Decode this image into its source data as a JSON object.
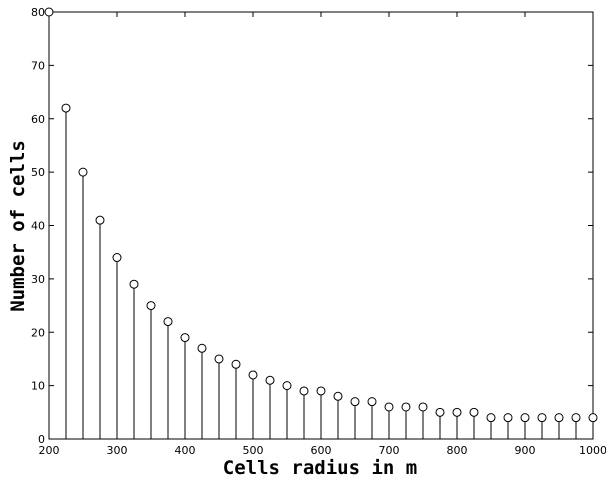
{
  "chart_data": {
    "type": "stem",
    "title": "",
    "xlabel": "Cells radius in m",
    "ylabel": "Number of cells",
    "xlim": [
      200,
      1000
    ],
    "ylim": [
      0,
      80
    ],
    "xticks": [
      200,
      300,
      400,
      500,
      600,
      700,
      800,
      900,
      1000
    ],
    "yticks": [
      0,
      10,
      20,
      30,
      40,
      50,
      60,
      70,
      80
    ],
    "grid": false,
    "legend": "none",
    "marker": "open-circle",
    "line_color": "#000000",
    "x": [
      200,
      225,
      250,
      275,
      300,
      325,
      350,
      375,
      400,
      425,
      450,
      475,
      500,
      525,
      550,
      575,
      600,
      625,
      650,
      675,
      700,
      725,
      750,
      775,
      800,
      825,
      850,
      875,
      900,
      925,
      950,
      975,
      1000
    ],
    "y": [
      80,
      62,
      50,
      41,
      34,
      29,
      25,
      22,
      19,
      17,
      15,
      14,
      12,
      11,
      10,
      9,
      9,
      8,
      7,
      7,
      6,
      6,
      6,
      5,
      5,
      5,
      4,
      4,
      4,
      4,
      4,
      4,
      4
    ]
  }
}
